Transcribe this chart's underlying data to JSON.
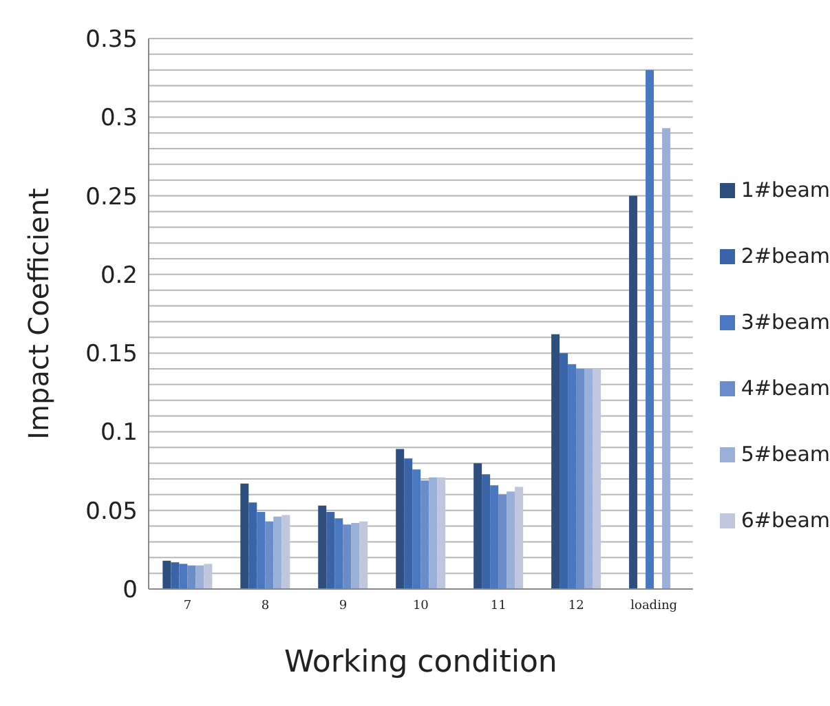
{
  "chart_data": {
    "type": "bar",
    "xlabel": "Working condition",
    "ylabel": "Impact Coefficient",
    "categories": [
      "7",
      "8",
      "9",
      "10",
      "11",
      "12",
      "loading"
    ],
    "series": [
      {
        "name": "1#beam",
        "color": "#2e4e7e",
        "values": [
          0.018,
          0.067,
          0.053,
          0.089,
          0.08,
          0.162,
          0.25
        ]
      },
      {
        "name": "2#beam",
        "color": "#3a64a8",
        "values": [
          0.017,
          0.055,
          0.049,
          0.083,
          0.073,
          0.15,
          null
        ]
      },
      {
        "name": "3#beam",
        "color": "#4a78c0",
        "values": [
          0.016,
          0.049,
          0.045,
          0.076,
          0.066,
          0.143,
          0.33
        ]
      },
      {
        "name": "4#beam",
        "color": "#6a8cc8",
        "values": [
          0.015,
          0.043,
          0.041,
          0.069,
          0.06,
          0.14,
          null
        ]
      },
      {
        "name": "5#beam",
        "color": "#9ab0d8",
        "values": [
          0.015,
          0.046,
          0.042,
          0.071,
          0.062,
          0.14,
          0.293
        ]
      },
      {
        "name": "6#beam",
        "color": "#c0c6dc",
        "values": [
          0.016,
          0.047,
          0.043,
          0.071,
          0.065,
          0.14,
          null
        ]
      }
    ],
    "ylim": [
      0,
      0.35
    ],
    "yticks": [
      0,
      {
        "value": 0.01,
        "label": null
      },
      {
        "value": 0.02,
        "label": null
      },
      {
        "value": 0.03,
        "label": null
      },
      {
        "value": 0.04,
        "label": null
      },
      0.05,
      {
        "value": 0.06,
        "label": null
      },
      {
        "value": 0.07,
        "label": null
      },
      {
        "value": 0.08,
        "label": null
      },
      {
        "value": 0.09,
        "label": null
      },
      0.1,
      {
        "value": 0.11,
        "label": null
      },
      {
        "value": 0.12,
        "label": null
      },
      {
        "value": 0.13,
        "label": null
      },
      {
        "value": 0.14,
        "label": null
      },
      0.15,
      {
        "value": 0.16,
        "label": null
      },
      {
        "value": 0.17,
        "label": null
      },
      {
        "value": 0.18,
        "label": null
      },
      {
        "value": 0.19,
        "label": null
      },
      0.2,
      {
        "value": 0.21,
        "label": null
      },
      {
        "value": 0.22,
        "label": null
      },
      {
        "value": 0.23,
        "label": null
      },
      {
        "value": 0.24,
        "label": null
      },
      0.25,
      {
        "value": 0.26,
        "label": null
      },
      {
        "value": 0.27,
        "label": null
      },
      {
        "value": 0.28,
        "label": null
      },
      {
        "value": 0.29,
        "label": null
      },
      0.3,
      {
        "value": 0.31,
        "label": null
      },
      {
        "value": 0.32,
        "label": null
      },
      {
        "value": 0.33,
        "label": null
      },
      {
        "value": 0.34,
        "label": null
      },
      0.35
    ],
    "grid": "y",
    "legend": "right"
  }
}
